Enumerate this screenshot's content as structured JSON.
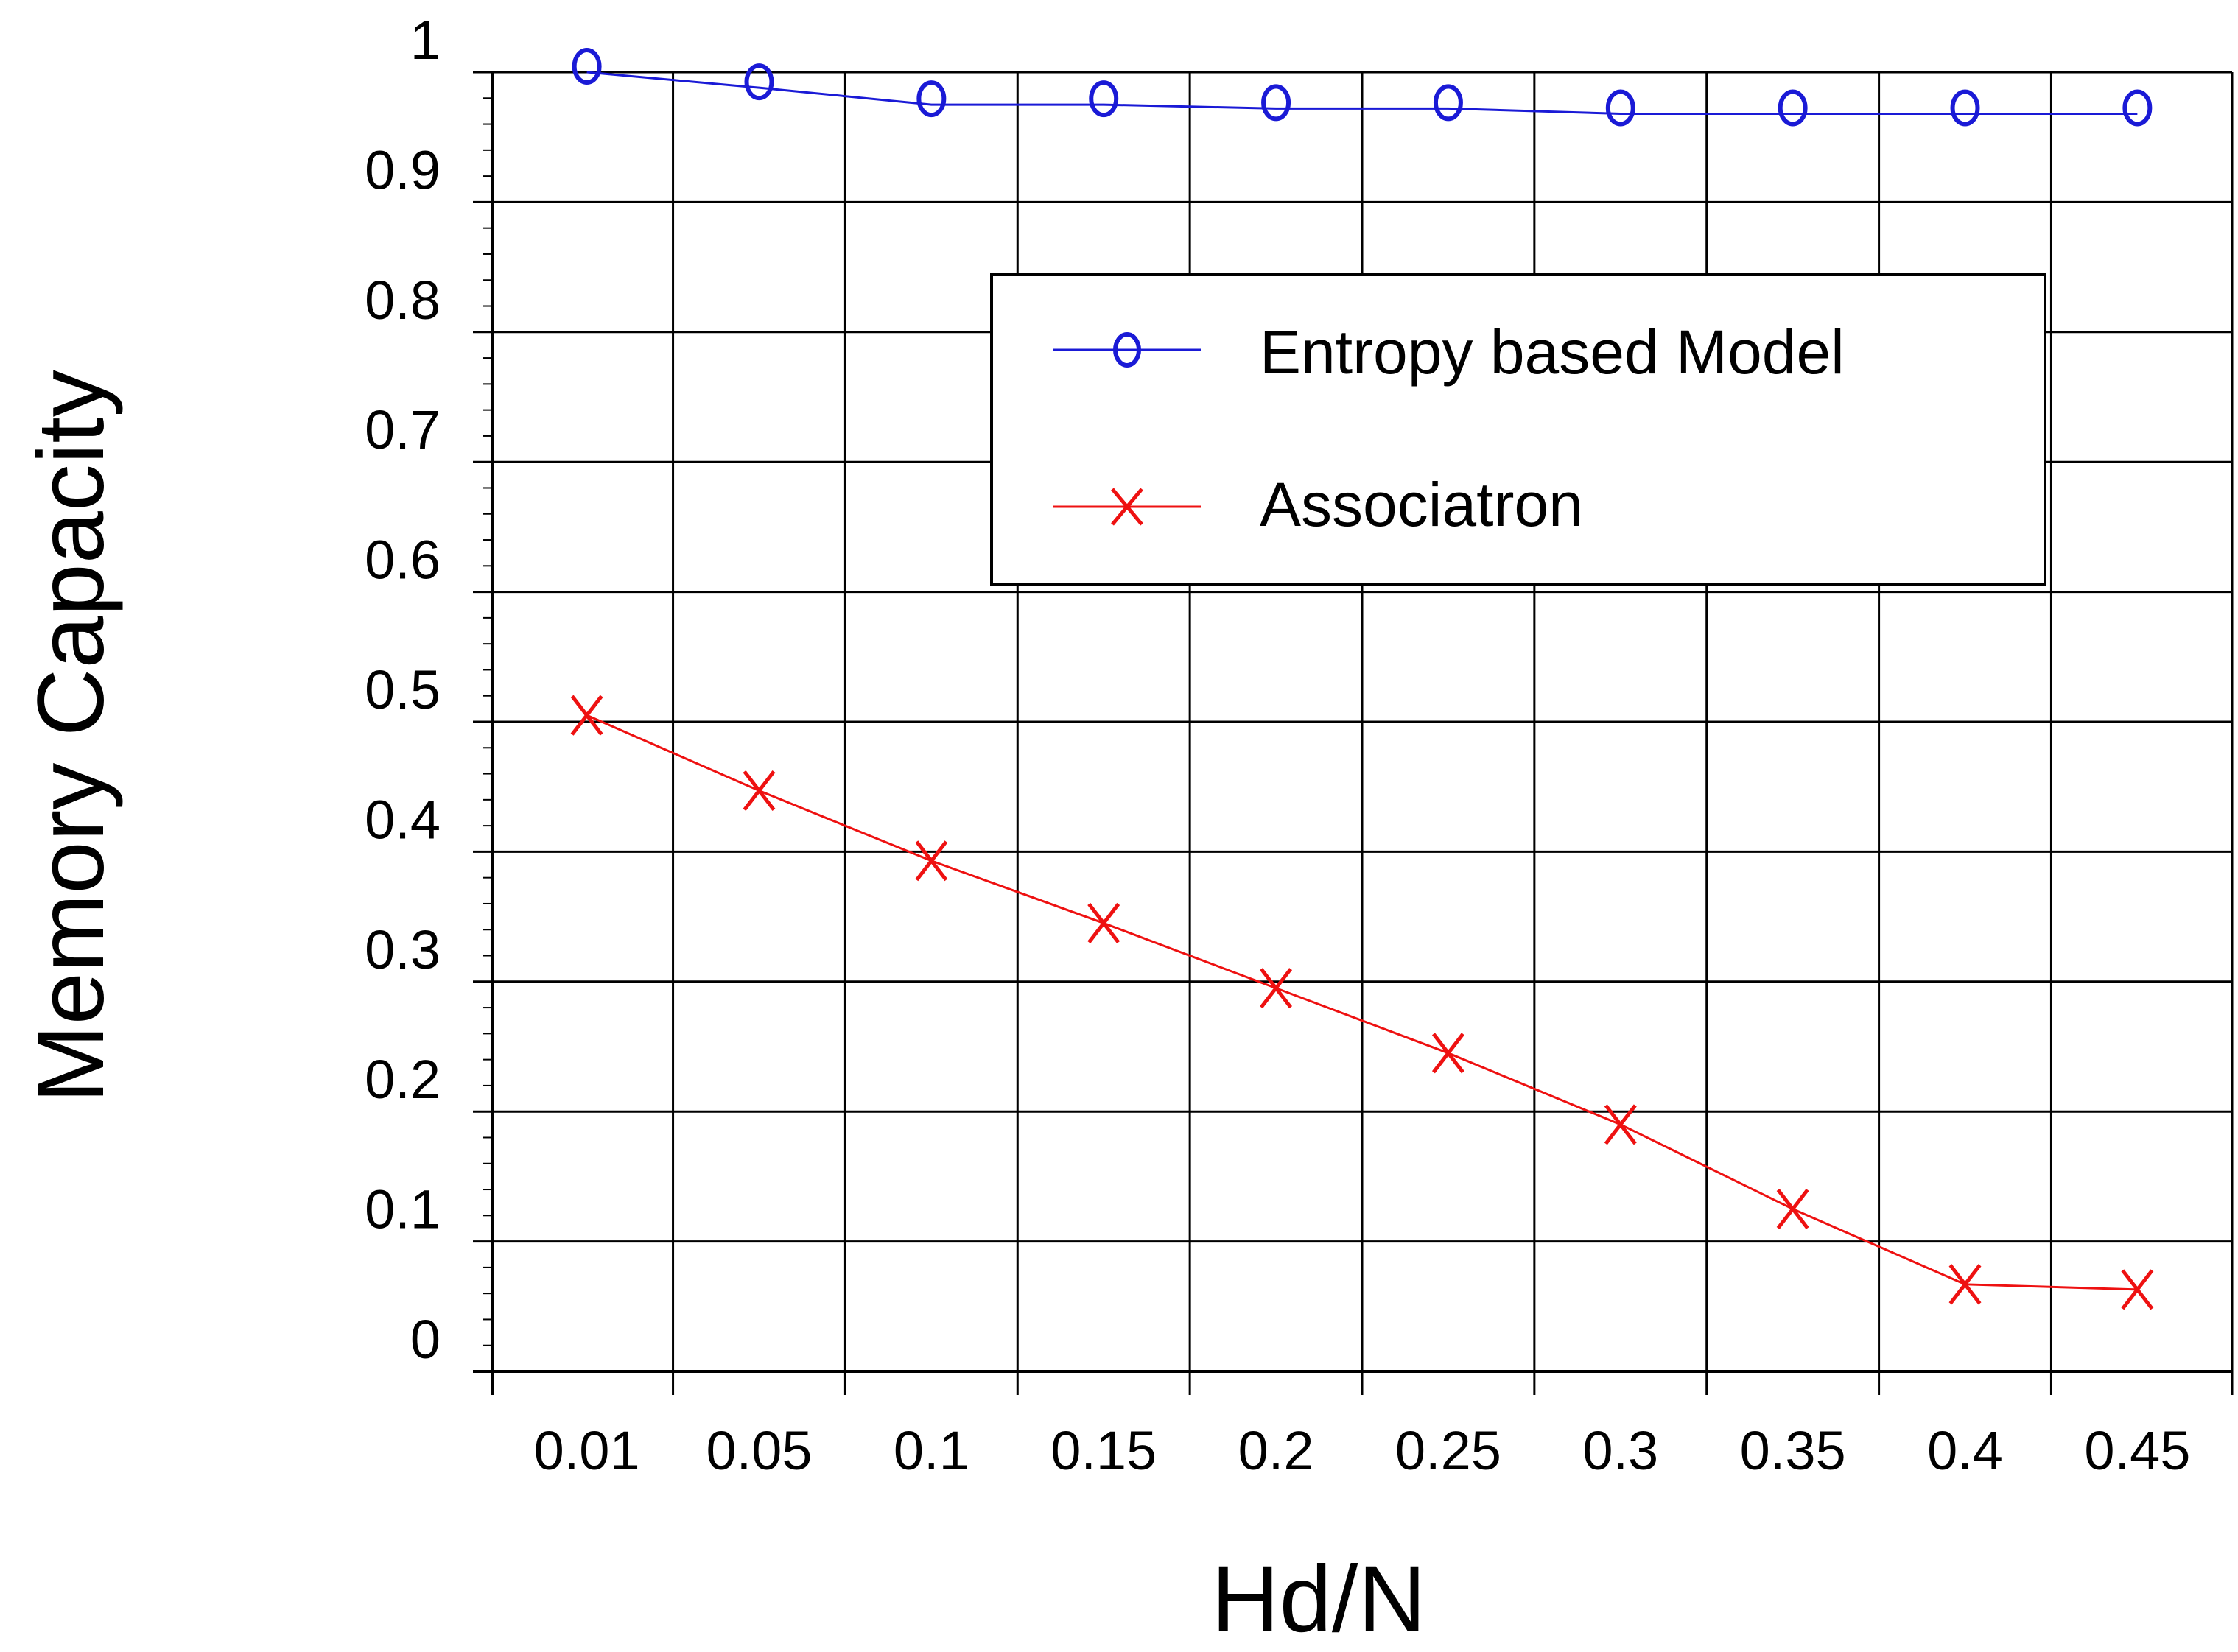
{
  "chart_data": {
    "type": "line",
    "title": "",
    "xlabel": "Hd/N",
    "ylabel": "Memory Capacity",
    "categories": [
      "0.01",
      "0.05",
      "0.1",
      "0.15",
      "0.2",
      "0.25",
      "0.3",
      "0.35",
      "0.4",
      "0.45"
    ],
    "y_ticks": [
      "0",
      "0.1",
      "0.2",
      "0.3",
      "0.4",
      "0.5",
      "0.6",
      "0.7",
      "0.8",
      "0.9",
      "1"
    ],
    "ylim": [
      0,
      1
    ],
    "grid": true,
    "legend_position": "top-right",
    "series": [
      {
        "name": "Entropy based Model",
        "marker": "o",
        "color": "#1a1ad6",
        "values": [
          1.0,
          0.988,
          0.975,
          0.975,
          0.972,
          0.972,
          0.968,
          0.968,
          0.968,
          0.968
        ]
      },
      {
        "name": "Associatron",
        "marker": "x",
        "color": "#ee1111",
        "values": [
          0.505,
          0.447,
          0.393,
          0.345,
          0.295,
          0.245,
          0.19,
          0.125,
          0.067,
          0.063
        ]
      }
    ]
  }
}
